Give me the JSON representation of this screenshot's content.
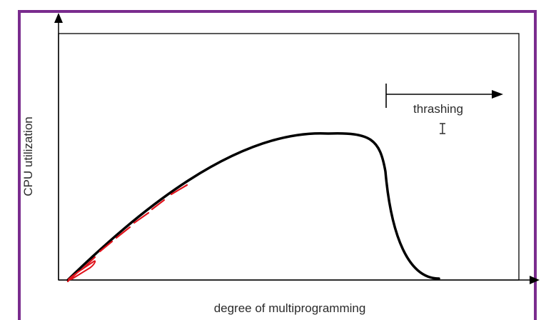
{
  "diagram": {
    "x_axis_label": "degree of multiprogramming",
    "y_axis_label": "CPU utilization",
    "annotation": "thrashing"
  },
  "colors": {
    "frame_border": "#7a2c8e",
    "curve": "#000000",
    "ink_annotation": "#e0121b"
  },
  "cursor": {
    "icon": "text-cursor-icon"
  }
}
